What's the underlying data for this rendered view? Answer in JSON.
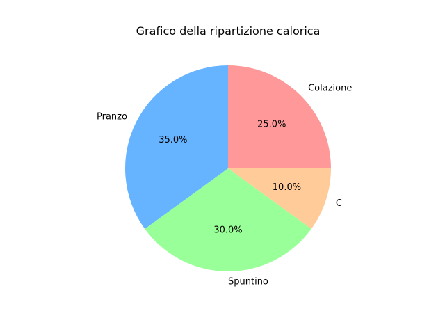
{
  "chart_data": {
    "type": "pie",
    "title": "Grafico della ripartizione calorica",
    "start_angle_deg": 90,
    "direction": "clockwise",
    "legend": "none",
    "slices": [
      {
        "label": "Colazione",
        "value": 25.0,
        "percent_label": "25.0%",
        "color": "#ff9999"
      },
      {
        "label": "C",
        "value": 10.0,
        "percent_label": "10.0%",
        "color": "#ffcc99"
      },
      {
        "label": "Spuntino",
        "value": 30.0,
        "percent_label": "30.0%",
        "color": "#99ff99"
      },
      {
        "label": "Pranzo",
        "value": 35.0,
        "percent_label": "35.0%",
        "color": "#66b3ff"
      }
    ]
  }
}
